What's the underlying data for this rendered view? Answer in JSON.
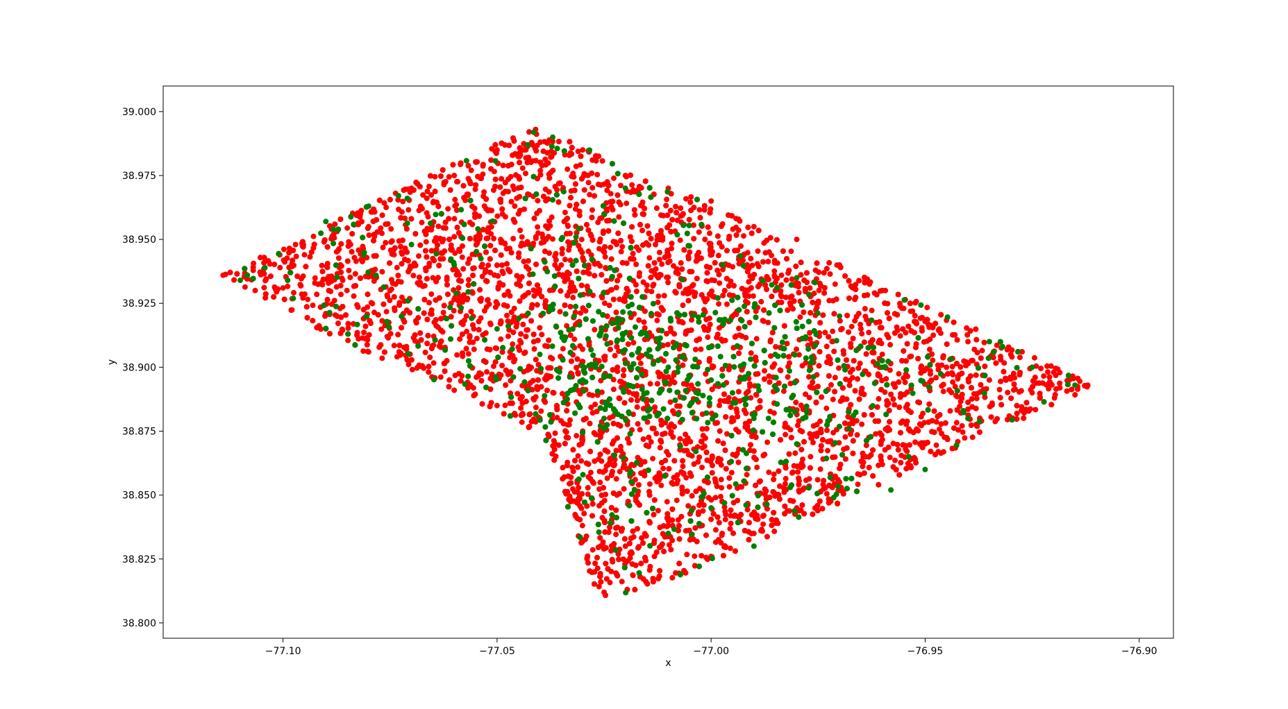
{
  "chart_data": {
    "type": "scatter",
    "title": "",
    "xlabel": "x",
    "ylabel": "y",
    "xlim": [
      -77.128,
      -76.892
    ],
    "ylim": [
      38.794,
      39.01
    ],
    "xticks": [
      -77.1,
      -77.05,
      -77.0,
      -76.95,
      -76.9
    ],
    "xtick_labels": [
      "−77.10",
      "−77.05",
      "−77.00",
      "−76.95",
      "−76.90"
    ],
    "yticks": [
      38.8,
      38.825,
      38.85,
      38.875,
      38.9,
      38.925,
      38.95,
      38.975,
      39.0
    ],
    "ytick_labels": [
      "38.800",
      "38.825",
      "38.850",
      "38.875",
      "38.900",
      "38.925",
      "38.950",
      "38.975",
      "39.000"
    ],
    "grid": false,
    "legend": "none",
    "boundary_outline": [
      [
        -77.041,
        38.995
      ],
      [
        -76.91,
        38.893
      ],
      [
        -77.002,
        38.822
      ],
      [
        -77.021,
        38.81
      ],
      [
        -77.027,
        38.81
      ],
      [
        -77.029,
        38.823
      ],
      [
        -77.039,
        38.873
      ],
      [
        -77.062,
        38.893
      ],
      [
        -77.085,
        38.908
      ],
      [
        -77.114,
        38.936
      ]
    ],
    "series": [
      {
        "color": "#ff0000",
        "points": [
          [
            -77.114,
            38.936
          ],
          [
            -77.1,
            38.931
          ],
          [
            -77.095,
            38.944
          ],
          [
            -77.09,
            38.921
          ],
          [
            -77.08,
            38.955
          ],
          [
            -77.075,
            38.93
          ],
          [
            -77.07,
            38.97
          ],
          [
            -77.065,
            38.935
          ],
          [
            -77.06,
            38.975
          ],
          [
            -77.055,
            38.95
          ],
          [
            -77.05,
            38.985
          ],
          [
            -77.045,
            38.96
          ],
          [
            -77.041,
            38.993
          ],
          [
            -77.035,
            38.94
          ],
          [
            -77.03,
            38.985
          ],
          [
            -77.025,
            38.96
          ],
          [
            -77.02,
            38.975
          ],
          [
            -77.015,
            38.93
          ],
          [
            -77.01,
            38.97
          ],
          [
            -77.005,
            38.945
          ],
          [
            -77.0,
            38.965
          ],
          [
            -76.995,
            38.92
          ],
          [
            -76.99,
            38.955
          ],
          [
            -76.985,
            38.93
          ],
          [
            -76.98,
            38.95
          ],
          [
            -76.975,
            38.925
          ],
          [
            -76.97,
            38.94
          ],
          [
            -76.965,
            38.915
          ],
          [
            -76.96,
            38.93
          ],
          [
            -76.955,
            38.923
          ],
          [
            -76.95,
            38.918
          ],
          [
            -76.945,
            38.9
          ],
          [
            -76.94,
            38.91
          ],
          [
            -76.935,
            38.895
          ],
          [
            -76.93,
            38.905
          ],
          [
            -76.925,
            38.89
          ],
          [
            -76.92,
            38.898
          ],
          [
            -76.912,
            38.893
          ],
          [
            -76.94,
            38.88
          ],
          [
            -76.95,
            38.87
          ],
          [
            -76.96,
            38.862
          ],
          [
            -76.97,
            38.855
          ],
          [
            -76.98,
            38.845
          ],
          [
            -76.99,
            38.835
          ],
          [
            -77.0,
            38.826
          ],
          [
            -77.01,
            38.84
          ],
          [
            -77.02,
            38.83
          ],
          [
            -77.025,
            38.812
          ],
          [
            -77.022,
            38.85
          ],
          [
            -77.03,
            38.875
          ],
          [
            -77.04,
            38.88
          ],
          [
            -77.05,
            38.885
          ],
          [
            -77.06,
            38.891
          ],
          [
            -77.08,
            38.906
          ],
          [
            -77.09,
            38.915
          ]
        ]
      },
      {
        "color": "#008000",
        "points": [
          [
            -77.11,
            38.934
          ],
          [
            -77.09,
            38.957
          ],
          [
            -77.08,
            38.963
          ],
          [
            -77.07,
            38.948
          ],
          [
            -77.06,
            38.94
          ],
          [
            -77.05,
            38.915
          ],
          [
            -77.04,
            38.905
          ],
          [
            -77.037,
            38.99
          ],
          [
            -77.035,
            38.95
          ],
          [
            -77.032,
            38.92
          ],
          [
            -77.03,
            38.895
          ],
          [
            -77.027,
            38.9
          ],
          [
            -77.025,
            38.88
          ],
          [
            -77.022,
            38.91
          ],
          [
            -77.02,
            38.97
          ],
          [
            -77.015,
            38.89
          ],
          [
            -77.01,
            38.9
          ],
          [
            -77.005,
            38.885
          ],
          [
            -77.0,
            38.895
          ],
          [
            -76.995,
            38.89
          ],
          [
            -76.99,
            38.88
          ],
          [
            -76.985,
            38.905
          ],
          [
            -76.98,
            38.935
          ],
          [
            -76.97,
            38.92
          ],
          [
            -76.96,
            38.9
          ],
          [
            -76.958,
            38.852
          ],
          [
            -76.95,
            38.86
          ],
          [
            -76.94,
            38.88
          ],
          [
            -76.935,
            38.91
          ],
          [
            -76.925,
            38.9
          ],
          [
            -76.915,
            38.893
          ],
          [
            -76.99,
            38.83
          ],
          [
            -77.0,
            38.845
          ],
          [
            -77.01,
            38.835
          ],
          [
            -76.98,
            38.87
          ]
        ]
      }
    ]
  }
}
